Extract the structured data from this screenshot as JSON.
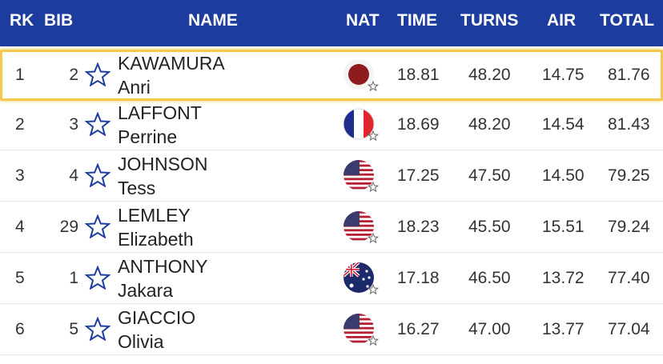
{
  "table": {
    "header": [
      "RK",
      "BIB",
      "NAME",
      "NAT",
      "TIME",
      "TURNS",
      "AIR",
      "TOTAL"
    ],
    "rows": [
      {
        "rank": "1",
        "bib": "2",
        "last": "KAWAMURA",
        "first": "Anri",
        "time": "18.81",
        "turns": "48.20",
        "air": "14.75",
        "total": "81.76"
      },
      {
        "rank": "2",
        "bib": "3",
        "last": "LAFFONT",
        "first": "Perrine",
        "time": "18.69",
        "turns": "48.20",
        "air": "14.54",
        "total": "81.43"
      },
      {
        "rank": "3",
        "bib": "4",
        "last": "JOHNSON",
        "first": "Tess",
        "time": "17.25",
        "turns": "47.50",
        "air": "14.50",
        "total": "79.25"
      },
      {
        "rank": "4",
        "bib": "29",
        "last": "LEMLEY",
        "first": "Elizabeth",
        "time": "18.23",
        "turns": "45.50",
        "air": "15.51",
        "total": "79.24"
      },
      {
        "rank": "5",
        "bib": "1",
        "last": "ANTHONY",
        "first": "Jakara",
        "time": "17.18",
        "turns": "46.50",
        "air": "13.72",
        "total": "77.40"
      },
      {
        "rank": "6",
        "bib": "5",
        "last": "GIACCIO",
        "first": "Olivia",
        "time": "16.27",
        "turns": "47.00",
        "air": "13.77",
        "total": "77.04"
      }
    ]
  }
}
